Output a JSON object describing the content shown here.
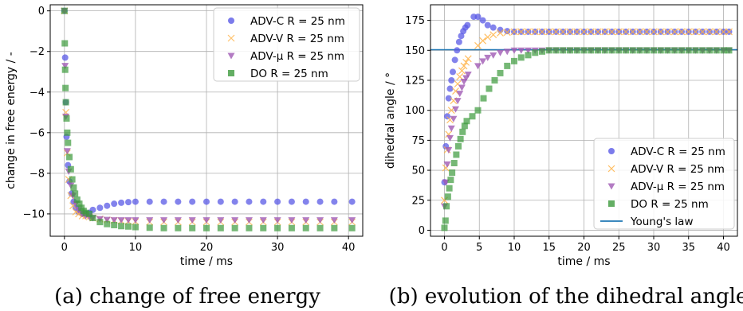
{
  "captions": {
    "a": "(a) change of free energy",
    "b": "(b) evolution of the dihedral angle"
  },
  "colors": {
    "advc": "#5a5ae6",
    "advv": "#ffb347",
    "advmu": "#a05ab4",
    "do": "#3c9a3c",
    "young": "#1f77b4"
  },
  "chart_data": [
    {
      "type": "scatter",
      "xlabel": "time / ms",
      "ylabel": "change in free energy / -",
      "xlim": [
        -2,
        42
      ],
      "ylim": [
        -11.1,
        0.3
      ],
      "xticks": [
        0,
        10,
        20,
        30,
        40
      ],
      "yticks": [
        0,
        -2,
        -4,
        -6,
        -8,
        -10
      ],
      "ytick_labels": [
        "0",
        "−2",
        "−4",
        "−6",
        "−8",
        "−10"
      ],
      "grid": true,
      "legend": "top-right",
      "series": [
        {
          "name": "ADV-C R = 25 nm",
          "marker": "circle",
          "color": "#5a5ae6",
          "opacity": 0.75,
          "x": [
            0,
            0.1,
            0.2,
            0.3,
            0.5,
            0.7,
            1.0,
            1.3,
            1.6,
            2.0,
            2.5,
            3.0,
            3.5,
            4.0,
            5,
            6,
            7,
            8,
            9,
            10,
            12,
            14,
            16,
            18,
            20,
            22,
            24,
            26,
            28,
            30,
            32,
            34,
            36,
            38,
            40.5
          ],
          "y": [
            0,
            -2.3,
            -4.5,
            -6.2,
            -7.6,
            -8.4,
            -9.0,
            -9.4,
            -9.7,
            -9.9,
            -10.0,
            -10.0,
            -9.95,
            -9.8,
            -9.7,
            -9.6,
            -9.5,
            -9.45,
            -9.42,
            -9.4,
            -9.4,
            -9.4,
            -9.4,
            -9.4,
            -9.4,
            -9.4,
            -9.4,
            -9.4,
            -9.4,
            -9.4,
            -9.4,
            -9.4,
            -9.4,
            -9.4,
            -9.4
          ]
        },
        {
          "name": "ADV-V R = 25 nm",
          "marker": "x",
          "color": "#ffb347",
          "opacity": 0.8,
          "x": [
            0,
            0.2,
            0.4,
            0.6,
            0.9,
            1.2,
            1.6,
            2.0,
            2.5,
            3.0,
            3.5,
            4,
            5,
            6,
            7,
            8,
            9,
            10,
            12,
            14,
            16,
            18,
            20,
            22,
            24,
            26,
            28,
            30,
            32,
            34,
            36,
            38,
            40.5
          ],
          "y": [
            0,
            -5.0,
            -7.0,
            -8.3,
            -9.1,
            -9.6,
            -9.9,
            -10.0,
            -10.1,
            -10.1,
            -10.15,
            -10.2,
            -10.25,
            -10.3,
            -10.32,
            -10.35,
            -10.37,
            -10.38,
            -10.4,
            -10.4,
            -10.4,
            -10.4,
            -10.4,
            -10.4,
            -10.4,
            -10.4,
            -10.4,
            -10.4,
            -10.4,
            -10.4,
            -10.4,
            -10.4,
            -10.4
          ]
        },
        {
          "name": "ADV-μ R = 25 nm",
          "marker": "triangle-down",
          "color": "#a05ab4",
          "opacity": 0.8,
          "x": [
            0,
            0.1,
            0.2,
            0.4,
            0.6,
            0.9,
            1.2,
            1.6,
            2.0,
            2.5,
            3.0,
            3.5,
            4,
            5,
            6,
            7,
            8,
            9,
            10,
            12,
            14,
            16,
            18,
            20,
            22,
            24,
            26,
            28,
            30,
            32,
            34,
            36,
            38,
            40.5
          ],
          "y": [
            0,
            -2.7,
            -5.2,
            -6.9,
            -7.9,
            -8.6,
            -9.1,
            -9.5,
            -9.8,
            -10.0,
            -10.1,
            -10.15,
            -10.2,
            -10.25,
            -10.28,
            -10.3,
            -10.3,
            -10.3,
            -10.3,
            -10.3,
            -10.3,
            -10.3,
            -10.3,
            -10.3,
            -10.3,
            -10.3,
            -10.3,
            -10.3,
            -10.3,
            -10.3,
            -10.3,
            -10.3,
            -10.3,
            -10.3
          ]
        },
        {
          "name": "DO R = 25 nm",
          "marker": "square",
          "color": "#3c9a3c",
          "opacity": 0.7,
          "x": [
            0,
            0.05,
            0.1,
            0.15,
            0.2,
            0.3,
            0.4,
            0.5,
            0.7,
            0.9,
            1.1,
            1.3,
            1.5,
            1.8,
            2.1,
            2.4,
            2.7,
            3.0,
            3.5,
            4,
            5,
            6,
            7,
            8,
            9,
            10,
            12,
            14,
            16,
            18,
            20,
            22,
            24,
            26,
            28,
            30,
            32,
            34,
            36,
            38,
            40.5
          ],
          "y": [
            0,
            -1.6,
            -2.9,
            -3.8,
            -4.5,
            -5.3,
            -6.0,
            -6.5,
            -7.2,
            -7.8,
            -8.3,
            -8.7,
            -9.0,
            -9.3,
            -9.5,
            -9.7,
            -9.85,
            -9.95,
            -10.0,
            -10.2,
            -10.4,
            -10.5,
            -10.55,
            -10.6,
            -10.62,
            -10.65,
            -10.68,
            -10.7,
            -10.7,
            -10.7,
            -10.7,
            -10.7,
            -10.7,
            -10.7,
            -10.7,
            -10.7,
            -10.7,
            -10.7,
            -10.7,
            -10.7,
            -10.7
          ]
        }
      ]
    },
    {
      "type": "scatter",
      "xlabel": "time / ms",
      "ylabel": "dihedral angle / °",
      "xlim": [
        -2,
        42
      ],
      "ylim": [
        -5,
        188
      ],
      "xticks": [
        0,
        5,
        10,
        15,
        20,
        25,
        30,
        35,
        40
      ],
      "yticks": [
        0,
        25,
        50,
        75,
        100,
        125,
        150,
        175
      ],
      "ytick_labels": [
        "0",
        "25",
        "50",
        "75",
        "100",
        "125",
        "150",
        "175"
      ],
      "grid": true,
      "legend": "bottom-right",
      "series": [
        {
          "name": "ADV-C R = 25 nm",
          "marker": "circle",
          "color": "#5a5ae6",
          "opacity": 0.75,
          "x": [
            0,
            0.2,
            0.4,
            0.6,
            0.8,
            1.0,
            1.2,
            1.5,
            1.8,
            2.1,
            2.4,
            2.7,
            3.0,
            3.3,
            4.2,
            4.8,
            5.5,
            6.2,
            7,
            8,
            9,
            10,
            11,
            12,
            13,
            14,
            15,
            16,
            17,
            18,
            19,
            20,
            21,
            22,
            23,
            24,
            25,
            26,
            27,
            28,
            29,
            30,
            31,
            32,
            33,
            34,
            35,
            36,
            37,
            38,
            39,
            40,
            40.8
          ],
          "y": [
            40,
            70,
            95,
            110,
            118,
            125,
            132,
            142,
            150,
            157,
            162,
            166,
            169,
            171,
            178,
            178,
            175,
            171,
            169,
            167,
            166,
            165.5,
            165.5,
            165.5,
            165.5,
            165.5,
            165.5,
            165.5,
            165.5,
            165.5,
            165.5,
            165.5,
            165.5,
            165.5,
            165.5,
            165.5,
            165.5,
            165.5,
            165.5,
            165.5,
            165.5,
            165.5,
            165.5,
            165.5,
            165.5,
            165.5,
            165.5,
            165.5,
            165.5,
            165.5,
            165.5,
            165.5,
            165.5
          ]
        },
        {
          "name": "ADV-V R = 25 nm",
          "marker": "x",
          "color": "#ffb347",
          "opacity": 0.85,
          "x": [
            0,
            0.2,
            0.4,
            0.6,
            0.8,
            1.0,
            1.3,
            1.6,
            1.9,
            2.2,
            2.5,
            2.8,
            3.1,
            3.4,
            4.8,
            5.5,
            6.2,
            7,
            8,
            9,
            10,
            11,
            12,
            13,
            14,
            15,
            16,
            17,
            18,
            19,
            20,
            21,
            22,
            23,
            24,
            25,
            26,
            27,
            28,
            29,
            30,
            31,
            32,
            33,
            34,
            35,
            36,
            37,
            38,
            39,
            40,
            40.8
          ],
          "y": [
            25,
            52,
            67,
            80,
            92,
            100,
            108,
            116,
            122,
            128,
            133,
            137,
            140,
            143,
            154,
            158,
            161,
            163,
            164.5,
            165,
            165.5,
            165.5,
            165.5,
            165.5,
            165.5,
            165.5,
            165.5,
            165.5,
            165.5,
            165.5,
            165.5,
            165.5,
            165.5,
            165.5,
            165.5,
            165.5,
            165.5,
            165.5,
            165.5,
            165.5,
            165.5,
            165.5,
            165.5,
            165.5,
            165.5,
            165.5,
            165.5,
            165.5,
            165.5,
            165.5,
            165.5,
            165.5
          ]
        },
        {
          "name": "ADV-μ R = 25 nm",
          "marker": "triangle-down",
          "color": "#a05ab4",
          "opacity": 0.8,
          "x": [
            0,
            0.2,
            0.4,
            0.6,
            0.8,
            1.0,
            1.3,
            1.6,
            1.9,
            2.2,
            2.5,
            2.8,
            3.1,
            3.4,
            4.8,
            5.5,
            6.2,
            7,
            8,
            9,
            10,
            11,
            12,
            13,
            14,
            15,
            16,
            17,
            18,
            19,
            20,
            21,
            22,
            23,
            24,
            25,
            26,
            27,
            28,
            29,
            30,
            31,
            32,
            33,
            34,
            35,
            36,
            37,
            38,
            39,
            40,
            40.8
          ],
          "y": [
            20,
            40,
            55,
            67,
            77,
            85,
            93,
            101,
            108,
            114,
            119,
            124,
            127,
            130,
            137,
            141,
            144,
            146,
            148,
            149,
            150,
            150,
            150,
            150,
            150,
            150,
            150,
            150,
            150,
            150,
            150,
            150,
            150,
            150,
            150,
            150,
            150,
            150,
            150,
            150,
            150,
            150,
            150,
            150,
            150,
            150,
            150,
            150,
            150,
            150,
            150,
            150
          ]
        },
        {
          "name": "DO R = 25 nm",
          "marker": "square",
          "color": "#3c9a3c",
          "opacity": 0.7,
          "x": [
            0,
            0.15,
            0.3,
            0.5,
            0.7,
            0.9,
            1.1,
            1.4,
            1.7,
            2.0,
            2.3,
            2.6,
            2.9,
            3.2,
            4.0,
            4.8,
            5.6,
            6.4,
            7.2,
            8,
            9,
            10,
            11,
            12,
            13,
            14,
            15,
            16,
            17,
            18,
            19,
            20,
            21,
            22,
            23,
            24,
            25,
            26,
            27,
            28,
            29,
            30,
            31,
            32,
            33,
            34,
            35,
            36,
            37,
            38,
            39,
            40,
            40.8
          ],
          "y": [
            2,
            8,
            20,
            28,
            35,
            42,
            48,
            56,
            63,
            70,
            76,
            82,
            87,
            91,
            95,
            100,
            110,
            118,
            125,
            131,
            137,
            141,
            144,
            146,
            148,
            149,
            150,
            150,
            150,
            150,
            150,
            150,
            150,
            150,
            150,
            150,
            150,
            150,
            150,
            150,
            150,
            150,
            150,
            150,
            150,
            150,
            150,
            150,
            150,
            150,
            150,
            150,
            150
          ]
        },
        {
          "name": "Young's law",
          "marker": "line",
          "color": "#1f77b4",
          "y_const": 150.5
        }
      ]
    }
  ]
}
